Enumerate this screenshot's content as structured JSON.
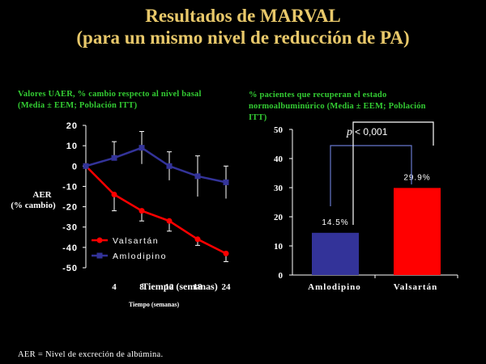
{
  "title_line1": "Resultados de MARVAL",
  "title_line2": "(para un mismo nivel de reducción de PA)",
  "left_caption_line1": "Valores UAER, % cambio respecto al nivel basal",
  "left_caption_line2": "(Media ± EEM; Población ITT)",
  "right_caption_line1": "% pacientes que recuperan el estado",
  "right_caption_line2": "normoalbuminúrico (Media ± EEM; Población",
  "right_caption_line3": "ITT)",
  "footer": "AER = Nivel de excreción de albúmina.",
  "colors": {
    "title": "#E8C86A",
    "caption": "#33CC33",
    "valsartan": "#FF0000",
    "amlodipino": "#333399",
    "text": "#FFFFFF"
  },
  "chart_data": [
    {
      "type": "line",
      "ylabel_line1": "AER",
      "ylabel_line2": "(% cambio)",
      "xlabel_overlay": "Tiempo (semanas)",
      "xlabel_small": "Tiempo (semanas)",
      "ylim": [
        -50,
        20
      ],
      "yticks": [
        20,
        10,
        0,
        -10,
        -20,
        -30,
        -40,
        -50
      ],
      "yticklabels": [
        "20",
        "10",
        "0",
        "-10",
        "-20",
        "-30",
        "-40",
        "-50"
      ],
      "xticks": [
        0,
        4,
        8,
        12,
        18,
        24
      ],
      "xticklabels": [
        "4",
        "8",
        "12",
        "18",
        "24"
      ],
      "series": [
        {
          "name": "Valsartán",
          "color": "#FF0000",
          "marker": "circle",
          "x": [
            0,
            4,
            8,
            12,
            18,
            24
          ],
          "y": [
            0,
            -14,
            -22,
            -27,
            -36,
            -43
          ],
          "err": [
            0,
            8,
            5,
            5,
            3,
            4
          ]
        },
        {
          "name": "Amlodipino",
          "color": "#333399",
          "marker": "square",
          "x": [
            0,
            4,
            8,
            12,
            18,
            24
          ],
          "y": [
            0,
            4,
            9,
            0,
            -5,
            -8
          ],
          "err": [
            0,
            8,
            8,
            7,
            10,
            8
          ]
        }
      ],
      "legend_position": "lower-left",
      "grid": false
    },
    {
      "type": "bar",
      "categories": [
        "Amlodipino",
        "Valsartán"
      ],
      "values": [
        14.5,
        29.9
      ],
      "value_labels": [
        "14.5%",
        "29.9%"
      ],
      "colors": [
        "#333399",
        "#FF0000"
      ],
      "ylim": [
        0,
        50
      ],
      "yticks": [
        0,
        10,
        20,
        30,
        40,
        50
      ],
      "yticklabels": [
        "0",
        "10",
        "20",
        "30",
        "40",
        "50"
      ],
      "annotation_p": "p",
      "annotation_value": " < 0,001",
      "grid": false
    }
  ]
}
